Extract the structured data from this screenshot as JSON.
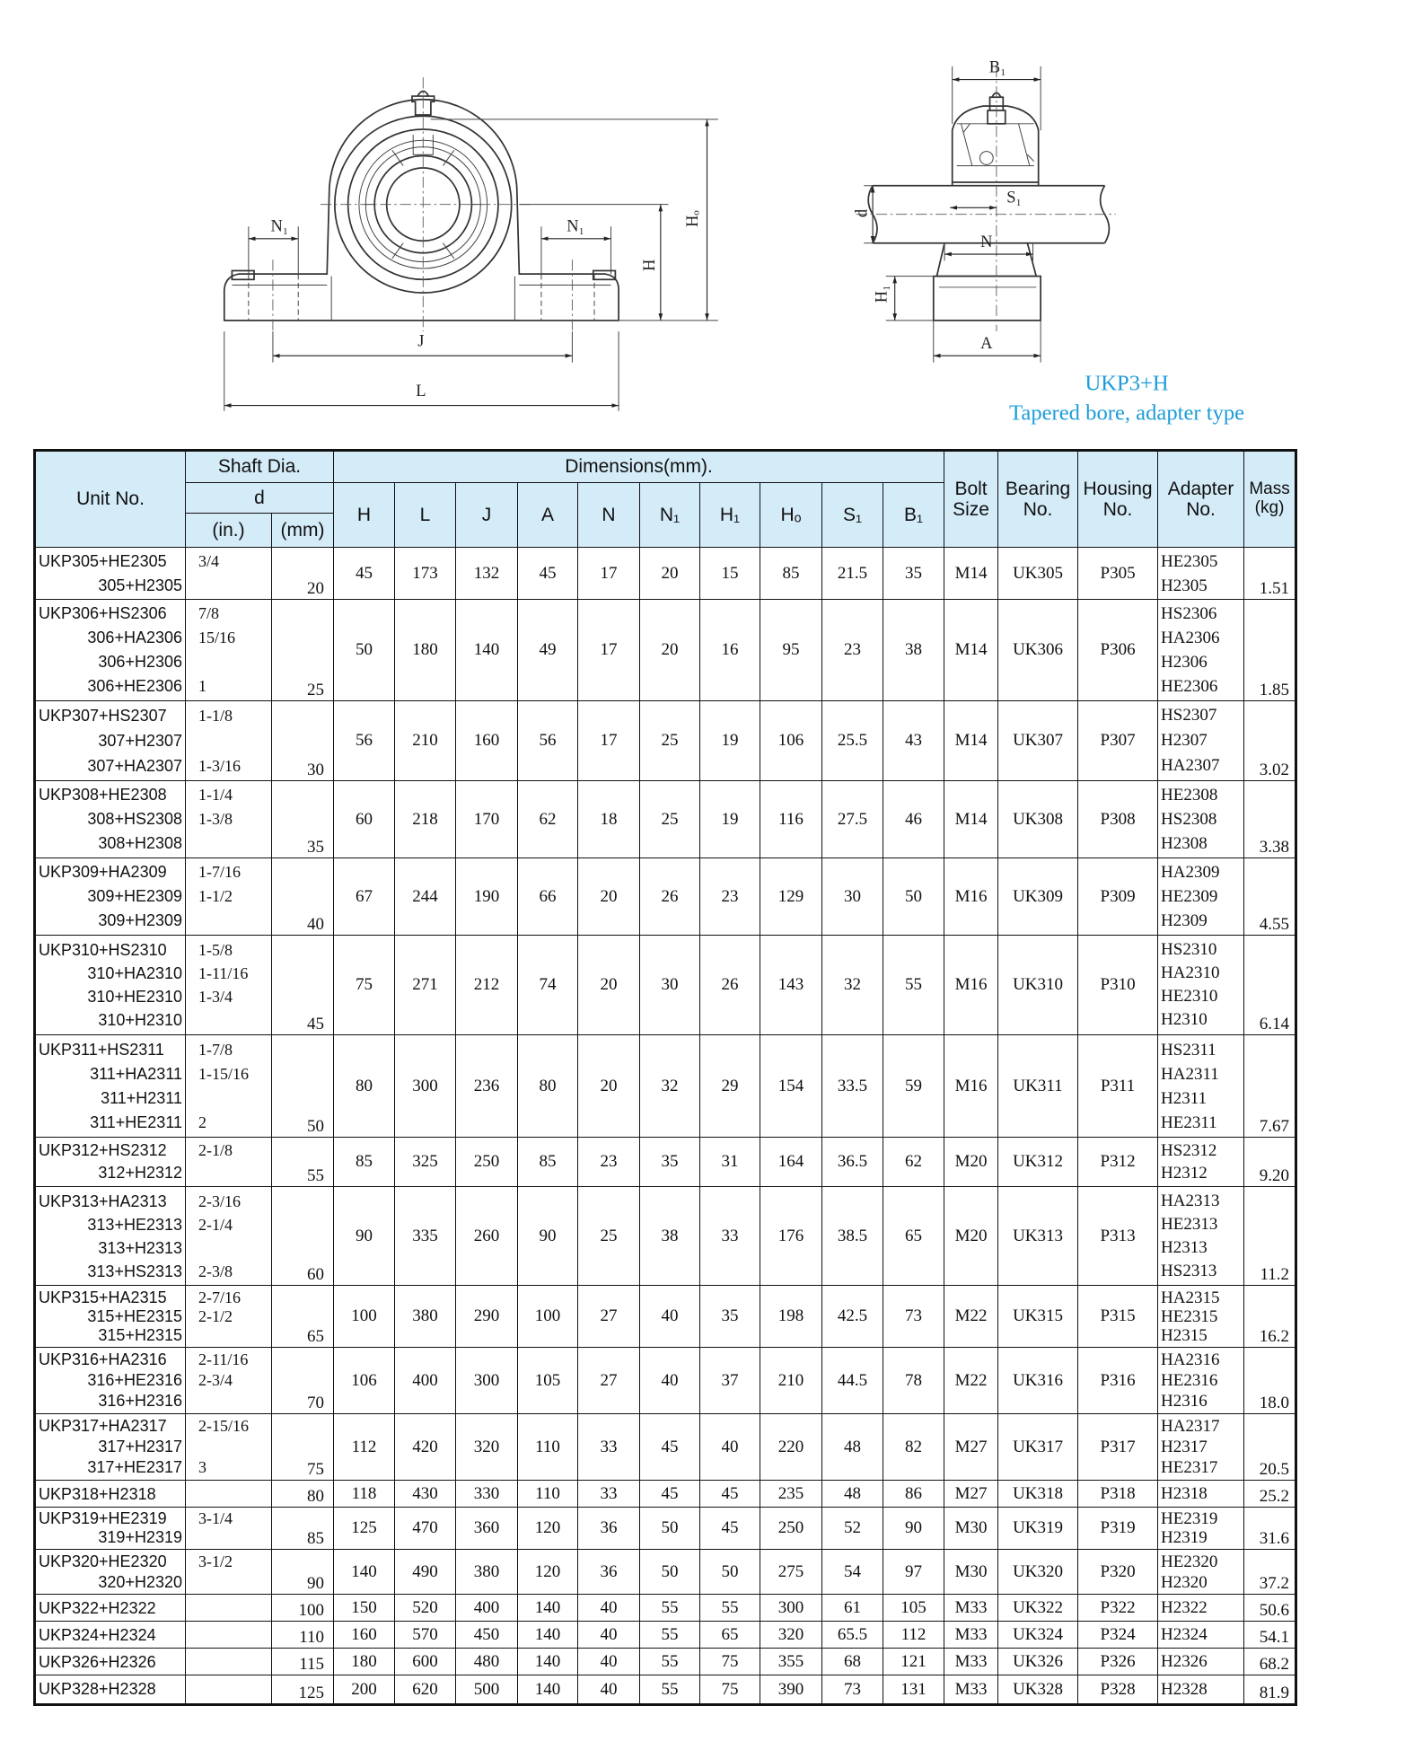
{
  "drawing": {
    "labels": {
      "n1": "N₁",
      "j": "J",
      "l": "L",
      "h": "H",
      "ho": "Hₒ",
      "b1": "B₁",
      "s1": "S₁",
      "d": "d",
      "n": "N",
      "h1": "H₁",
      "a": "A"
    }
  },
  "caption": {
    "model": "UKP3+H",
    "description": "Tapered bore, adapter type"
  },
  "table": {
    "headers": {
      "unit_no": "Unit No.",
      "shaft_dia": "Shaft Dia.",
      "d": "d",
      "inch": "(in.)",
      "mm": "(mm)",
      "dimensions": "Dimensions(mm).",
      "dims": [
        "H",
        "L",
        "J",
        "A",
        "N",
        "N₁",
        "H₁",
        "Hₒ",
        "S₁",
        "B₁"
      ],
      "bolt": "Bolt Size",
      "bearing": "Bearing No.",
      "housing": "Housing No.",
      "adapter": "Adapter No.",
      "mass": "Mass (kg)"
    },
    "rows": [
      {
        "unit": [
          "UKP305+HE2305",
          "305+H2305"
        ],
        "inch": [
          "3/4",
          null
        ],
        "mm": "20",
        "dims": [
          "45",
          "173",
          "132",
          "45",
          "17",
          "20",
          "15",
          "85",
          "21.5",
          "35"
        ],
        "bolt": "M14",
        "bearing": "UK305",
        "housing": "P305",
        "adapter": [
          "HE2305",
          "H2305"
        ],
        "mass": "1.51"
      },
      {
        "unit": [
          "UKP306+HS2306",
          "306+HA2306",
          "306+H2306",
          "306+HE2306"
        ],
        "inch": [
          "7/8",
          "15/16",
          null,
          "1"
        ],
        "mm": "25",
        "dims": [
          "50",
          "180",
          "140",
          "49",
          "17",
          "20",
          "16",
          "95",
          "23",
          "38"
        ],
        "bolt": "M14",
        "bearing": "UK306",
        "housing": "P306",
        "adapter": [
          "HS2306",
          "HA2306",
          "H2306",
          "HE2306"
        ],
        "mass": "1.85"
      },
      {
        "unit": [
          "UKP307+HS2307",
          "307+H2307",
          "307+HA2307"
        ],
        "inch": [
          "1-1/8",
          null,
          "1-3/16"
        ],
        "mm": "30",
        "dims": [
          "56",
          "210",
          "160",
          "56",
          "17",
          "25",
          "19",
          "106",
          "25.5",
          "43"
        ],
        "bolt": "M14",
        "bearing": "UK307",
        "housing": "P307",
        "adapter": [
          "HS2307",
          "H2307",
          "HA2307"
        ],
        "mass": "3.02"
      },
      {
        "unit": [
          "UKP308+HE2308",
          "308+HS2308",
          "308+H2308"
        ],
        "inch": [
          "1-1/4",
          "1-3/8",
          null
        ],
        "mm": "35",
        "dims": [
          "60",
          "218",
          "170",
          "62",
          "18",
          "25",
          "19",
          "116",
          "27.5",
          "46"
        ],
        "bolt": "M14",
        "bearing": "UK308",
        "housing": "P308",
        "adapter": [
          "HE2308",
          "HS2308",
          "H2308"
        ],
        "mass": "3.38"
      },
      {
        "unit": [
          "UKP309+HA2309",
          "309+HE2309",
          "309+H2309"
        ],
        "inch": [
          "1-7/16",
          "1-1/2",
          null
        ],
        "mm": "40",
        "dims": [
          "67",
          "244",
          "190",
          "66",
          "20",
          "26",
          "23",
          "129",
          "30",
          "50"
        ],
        "bolt": "M16",
        "bearing": "UK309",
        "housing": "P309",
        "adapter": [
          "HA2309",
          "HE2309",
          "H2309"
        ],
        "mass": "4.55"
      },
      {
        "unit": [
          "UKP310+HS2310",
          "310+HA2310",
          "310+HE2310",
          "310+H2310"
        ],
        "inch": [
          "1-5/8",
          "1-11/16",
          "1-3/4",
          null
        ],
        "mm": "45",
        "dims": [
          "75",
          "271",
          "212",
          "74",
          "20",
          "30",
          "26",
          "143",
          "32",
          "55"
        ],
        "bolt": "M16",
        "bearing": "UK310",
        "housing": "P310",
        "adapter": [
          "HS2310",
          "HA2310",
          "HE2310",
          "H2310"
        ],
        "mass": "6.14"
      },
      {
        "unit": [
          "UKP311+HS2311",
          "311+HA2311",
          "311+H2311",
          "311+HE2311"
        ],
        "inch": [
          "1-7/8",
          "1-15/16",
          null,
          "2"
        ],
        "mm": "50",
        "dims": [
          "80",
          "300",
          "236",
          "80",
          "20",
          "32",
          "29",
          "154",
          "33.5",
          "59"
        ],
        "bolt": "M16",
        "bearing": "UK311",
        "housing": "P311",
        "adapter": [
          "HS2311",
          "HA2311",
          "H2311",
          "HE2311"
        ],
        "mass": "7.67"
      },
      {
        "unit": [
          "UKP312+HS2312",
          "312+H2312"
        ],
        "inch": [
          "2-1/8",
          null
        ],
        "mm": "55",
        "dims": [
          "85",
          "325",
          "250",
          "85",
          "23",
          "35",
          "31",
          "164",
          "36.5",
          "62"
        ],
        "bolt": "M20",
        "bearing": "UK312",
        "housing": "P312",
        "adapter": [
          "HS2312",
          "H2312"
        ],
        "mass": "9.20"
      },
      {
        "unit": [
          "UKP313+HA2313",
          "313+HE2313",
          "313+H2313",
          "313+HS2313"
        ],
        "inch": [
          "2-3/16",
          "2-1/4",
          null,
          "2-3/8"
        ],
        "mm": "60",
        "dims": [
          "90",
          "335",
          "260",
          "90",
          "25",
          "38",
          "33",
          "176",
          "38.5",
          "65"
        ],
        "bolt": "M20",
        "bearing": "UK313",
        "housing": "P313",
        "adapter": [
          "HA2313",
          "HE2313",
          "H2313",
          "HS2313"
        ],
        "mass": "11.2"
      },
      {
        "unit": [
          "UKP315+HA2315",
          "315+HE2315",
          "315+H2315"
        ],
        "inch": [
          "2-7/16",
          "2-1/2",
          null
        ],
        "mm": "65",
        "dims": [
          "100",
          "380",
          "290",
          "100",
          "27",
          "40",
          "35",
          "198",
          "42.5",
          "73"
        ],
        "bolt": "M22",
        "bearing": "UK315",
        "housing": "P315",
        "adapter": [
          "HA2315",
          "HE2315",
          "H2315"
        ],
        "mass": "16.2"
      },
      {
        "unit": [
          "UKP316+HA2316",
          "316+HE2316",
          "316+H2316"
        ],
        "inch": [
          "2-11/16",
          "2-3/4",
          null
        ],
        "mm": "70",
        "dims": [
          "106",
          "400",
          "300",
          "105",
          "27",
          "40",
          "37",
          "210",
          "44.5",
          "78"
        ],
        "bolt": "M22",
        "bearing": "UK316",
        "housing": "P316",
        "adapter": [
          "HA2316",
          "HE2316",
          "H2316"
        ],
        "mass": "18.0"
      },
      {
        "unit": [
          "UKP317+HA2317",
          "317+H2317",
          "317+HE2317"
        ],
        "inch": [
          "2-15/16",
          null,
          "3"
        ],
        "mm": "75",
        "dims": [
          "112",
          "420",
          "320",
          "110",
          "33",
          "45",
          "40",
          "220",
          "48",
          "82"
        ],
        "bolt": "M27",
        "bearing": "UK317",
        "housing": "P317",
        "adapter": [
          "HA2317",
          "H2317",
          "HE2317"
        ],
        "mass": "20.5"
      },
      {
        "unit": [
          "UKP318+H2318"
        ],
        "inch": [
          null
        ],
        "mm": "80",
        "dims": [
          "118",
          "430",
          "330",
          "110",
          "33",
          "45",
          "45",
          "235",
          "48",
          "86"
        ],
        "bolt": "M27",
        "bearing": "UK318",
        "housing": "P318",
        "adapter": [
          "H2318"
        ],
        "mass": "25.2"
      },
      {
        "unit": [
          "UKP319+HE2319",
          "319+H2319"
        ],
        "inch": [
          "3-1/4",
          null
        ],
        "mm": "85",
        "dims": [
          "125",
          "470",
          "360",
          "120",
          "36",
          "50",
          "45",
          "250",
          "52",
          "90"
        ],
        "bolt": "M30",
        "bearing": "UK319",
        "housing": "P319",
        "adapter": [
          "HE2319",
          "H2319"
        ],
        "mass": "31.6"
      },
      {
        "unit": [
          "UKP320+HE2320",
          "320+H2320"
        ],
        "inch": [
          "3-1/2",
          null
        ],
        "mm": "90",
        "dims": [
          "140",
          "490",
          "380",
          "120",
          "36",
          "50",
          "50",
          "275",
          "54",
          "97"
        ],
        "bolt": "M30",
        "bearing": "UK320",
        "housing": "P320",
        "adapter": [
          "HE2320",
          "H2320"
        ],
        "mass": "37.2"
      },
      {
        "unit": [
          "UKP322+H2322"
        ],
        "inch": [
          null
        ],
        "mm": "100",
        "dims": [
          "150",
          "520",
          "400",
          "140",
          "40",
          "55",
          "55",
          "300",
          "61",
          "105"
        ],
        "bolt": "M33",
        "bearing": "UK322",
        "housing": "P322",
        "adapter": [
          "H2322"
        ],
        "mass": "50.6"
      },
      {
        "unit": [
          "UKP324+H2324"
        ],
        "inch": [
          null
        ],
        "mm": "110",
        "dims": [
          "160",
          "570",
          "450",
          "140",
          "40",
          "55",
          "65",
          "320",
          "65.5",
          "112"
        ],
        "bolt": "M33",
        "bearing": "UK324",
        "housing": "P324",
        "adapter": [
          "H2324"
        ],
        "mass": "54.1"
      },
      {
        "unit": [
          "UKP326+H2326"
        ],
        "inch": [
          null
        ],
        "mm": "115",
        "dims": [
          "180",
          "600",
          "480",
          "140",
          "40",
          "55",
          "75",
          "355",
          "68",
          "121"
        ],
        "bolt": "M33",
        "bearing": "UK326",
        "housing": "P326",
        "adapter": [
          "H2326"
        ],
        "mass": "68.2"
      },
      {
        "unit": [
          "UKP328+H2328"
        ],
        "inch": [
          null
        ],
        "mm": "125",
        "dims": [
          "200",
          "620",
          "500",
          "140",
          "40",
          "55",
          "75",
          "390",
          "73",
          "131"
        ],
        "bolt": "M33",
        "bearing": "UK328",
        "housing": "P328",
        "adapter": [
          "H2328"
        ],
        "mass": "81.9"
      }
    ]
  }
}
